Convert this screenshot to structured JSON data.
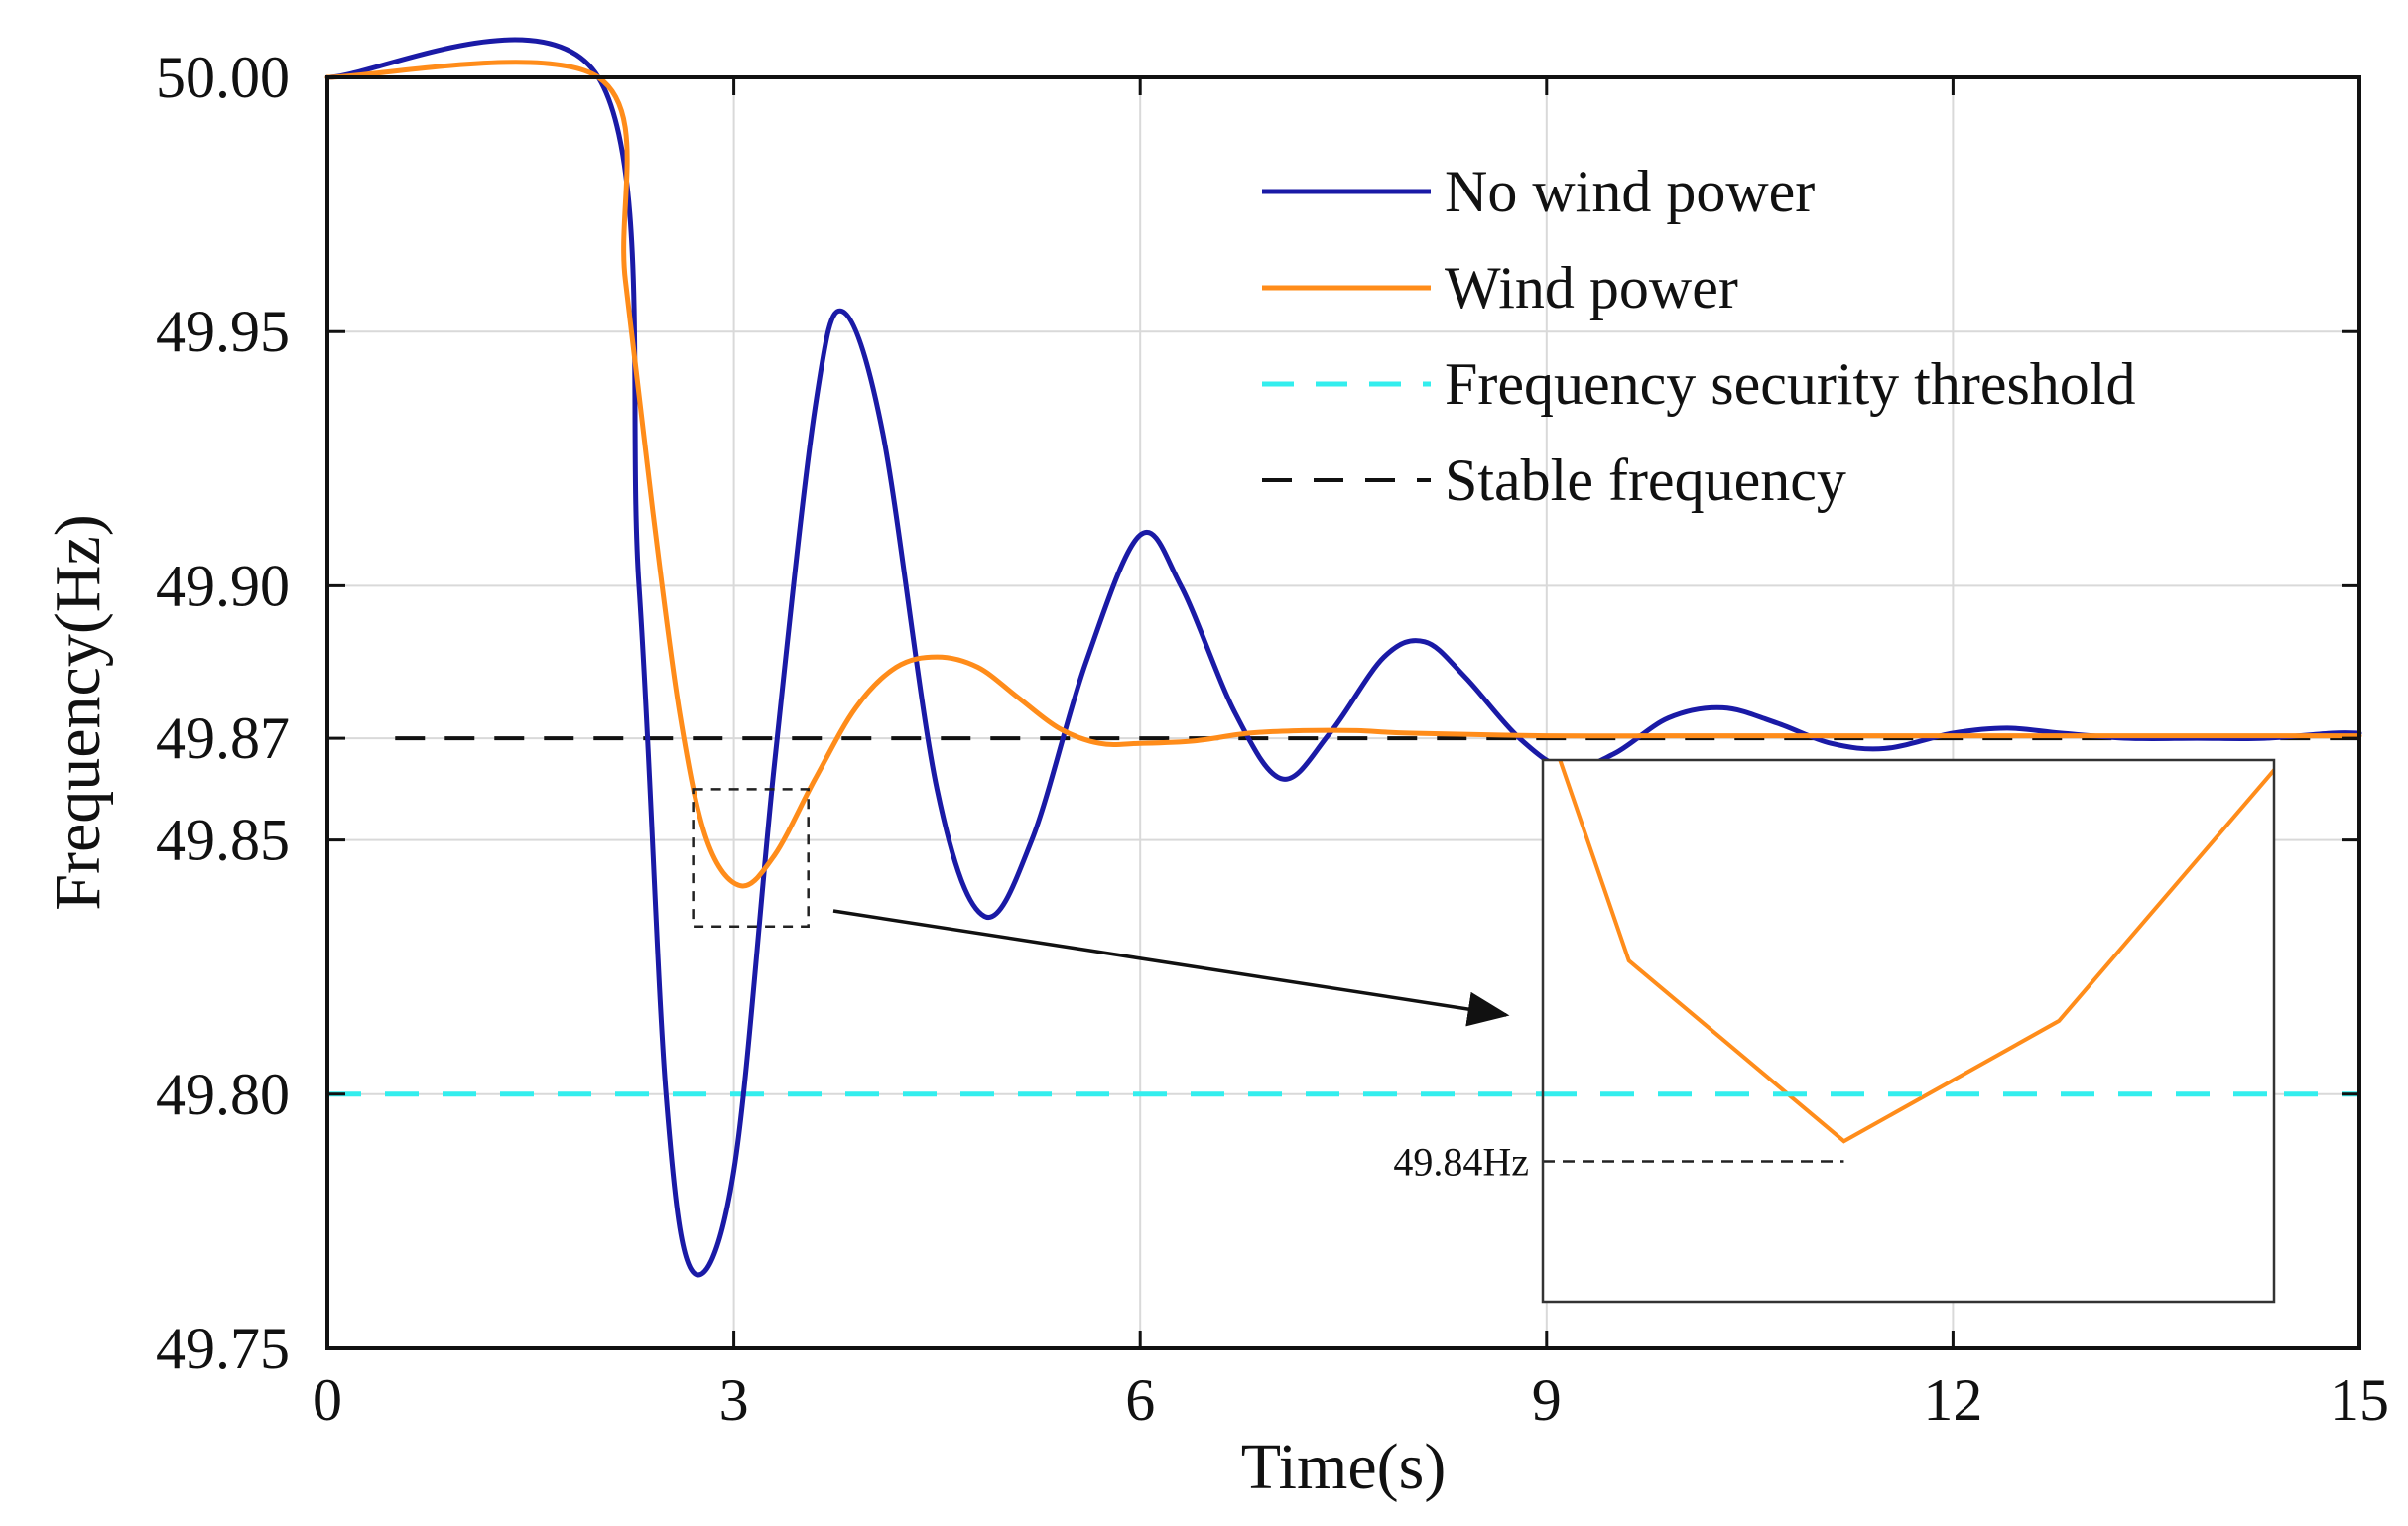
{
  "chart_data": {
    "type": "line",
    "xlabel": "Time(s)",
    "ylabel": "Frequency(Hz)",
    "xlim": [
      0,
      15
    ],
    "ylim": [
      49.75,
      50.0
    ],
    "xticks": [
      "0",
      "3",
      "6",
      "9",
      "12",
      "15"
    ],
    "yticks": [
      "49.75",
      "49.80",
      "49.85",
      "49.87",
      "49.90",
      "49.95",
      "50.00"
    ],
    "grid": true,
    "legend_position": "top-right",
    "colors": {
      "no_wind": "#1a1aa6",
      "wind": "#ff8c1a",
      "threshold": "#33eeee",
      "stable": "#111111"
    },
    "series": [
      {
        "name": "No wind power",
        "style": "solid",
        "x": [
          0,
          2.0,
          2.3,
          2.5,
          2.7,
          3.0,
          3.3,
          3.6,
          3.8,
          4.1,
          4.5,
          4.85,
          5.2,
          5.6,
          6.0,
          6.3,
          6.7,
          7.05,
          7.4,
          7.8,
          8.1,
          8.4,
          8.8,
          9.15,
          9.5,
          9.9,
          10.3,
          10.7,
          11.1,
          11.5,
          12.0,
          12.4,
          12.8,
          13.3,
          13.8,
          14.3,
          14.8,
          15
        ],
        "y": [
          50.0,
          50.0,
          49.9,
          49.8,
          49.765,
          49.785,
          49.865,
          49.935,
          49.954,
          49.93,
          49.86,
          49.835,
          49.85,
          49.885,
          49.91,
          49.9,
          49.875,
          49.862,
          49.871,
          49.886,
          49.889,
          49.882,
          49.87,
          49.864,
          49.867,
          49.874,
          49.876,
          49.873,
          49.869,
          49.868,
          49.871,
          49.872,
          49.871,
          49.87,
          49.87,
          49.87,
          49.871,
          49.871
        ]
      },
      {
        "name": "Wind power",
        "style": "solid",
        "x": [
          0,
          2.0,
          2.2,
          2.4,
          2.6,
          2.8,
          3.05,
          3.3,
          3.6,
          3.9,
          4.2,
          4.5,
          4.8,
          5.1,
          5.4,
          5.7,
          6.0,
          6.4,
          6.8,
          7.2,
          7.6,
          8.0,
          9.0,
          10.0,
          11.0,
          12.0,
          13.0,
          14.0,
          15
        ],
        "y": [
          50.0,
          50.0,
          49.96,
          49.915,
          49.875,
          49.85,
          49.841,
          49.847,
          49.862,
          49.876,
          49.884,
          49.886,
          49.884,
          49.878,
          49.872,
          49.869,
          49.869,
          49.8695,
          49.871,
          49.8715,
          49.8715,
          49.871,
          49.8705,
          49.8705,
          49.8705,
          49.8705,
          49.8705,
          49.8705,
          49.8705
        ]
      },
      {
        "name": "Frequency security threshold",
        "style": "dashed",
        "x": [
          0,
          15
        ],
        "y": [
          49.8,
          49.8
        ]
      },
      {
        "name": "Stable frequency",
        "style": "dashed",
        "x": [
          0.5,
          15
        ],
        "y": [
          49.87,
          49.87
        ]
      }
    ],
    "annotation": {
      "text": "49.84Hz",
      "zoom_region": {
        "x": [
          2.7,
          3.55
        ],
        "y": [
          49.833,
          49.86
        ]
      },
      "zoom_minimum": {
        "x": 3.05,
        "y": 49.84
      }
    }
  }
}
